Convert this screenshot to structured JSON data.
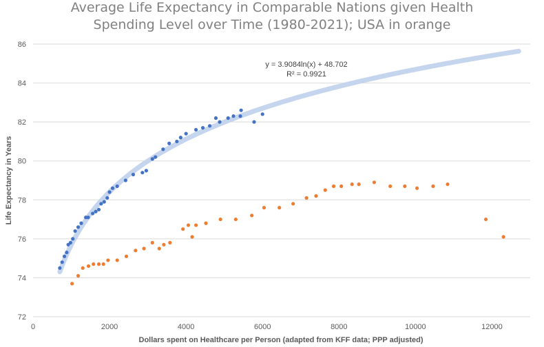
{
  "chart_data": {
    "type": "scatter",
    "title_line1": "Average Life Expectancy in Comparable Nations given Health",
    "title_line2": "Spending Level over Time (1980-2021); USA in orange",
    "xlabel": "Dollars spent on Healthcare per Person (adapted from KFF data; PPP adjusted)",
    "ylabel": "Life Expectancy in Years",
    "xlim": [
      0,
      13000
    ],
    "ylim": [
      72,
      86
    ],
    "x_ticks": [
      0,
      2000,
      4000,
      6000,
      8000,
      10000,
      12000
    ],
    "y_ticks": [
      72,
      74,
      76,
      78,
      80,
      82,
      84,
      86
    ],
    "grid": "horizontal",
    "trendline": {
      "equation": "y = 3.9084ln(x) + 48.702",
      "r_squared": "R² = 0.9921",
      "a": 3.9084,
      "b": 48.702,
      "x_range": [
        700,
        12700
      ],
      "color": "#c5d5ee"
    },
    "series": [
      {
        "color": "#4472c4",
        "points": [
          [
            700,
            74.5
          ],
          [
            760,
            74.8
          ],
          [
            820,
            75.1
          ],
          [
            880,
            75.3
          ],
          [
            920,
            75.7
          ],
          [
            980,
            75.8
          ],
          [
            1040,
            76.0
          ],
          [
            1100,
            76.4
          ],
          [
            1180,
            76.6
          ],
          [
            1260,
            76.8
          ],
          [
            1380,
            77.1
          ],
          [
            1440,
            77.1
          ],
          [
            1560,
            77.3
          ],
          [
            1640,
            77.4
          ],
          [
            1720,
            77.5
          ],
          [
            1780,
            77.8
          ],
          [
            1860,
            77.9
          ],
          [
            1940,
            78.1
          ],
          [
            2000,
            78.4
          ],
          [
            2080,
            78.6
          ],
          [
            2200,
            78.7
          ],
          [
            2420,
            79.0
          ],
          [
            2620,
            79.3
          ],
          [
            2860,
            79.4
          ],
          [
            2960,
            79.5
          ],
          [
            3120,
            80.1
          ],
          [
            3200,
            80.2
          ],
          [
            3400,
            80.6
          ],
          [
            3560,
            80.9
          ],
          [
            3760,
            81.0
          ],
          [
            3860,
            81.2
          ],
          [
            4000,
            81.4
          ],
          [
            4260,
            81.6
          ],
          [
            4440,
            81.7
          ],
          [
            4620,
            81.8
          ],
          [
            4780,
            82.2
          ],
          [
            4880,
            82.0
          ],
          [
            5100,
            82.2
          ],
          [
            5240,
            82.3
          ],
          [
            5420,
            82.3
          ],
          [
            5440,
            82.6
          ],
          [
            5780,
            82.0
          ],
          [
            6000,
            82.4
          ]
        ]
      },
      {
        "color": "#ed7d31",
        "points": [
          [
            1020,
            73.7
          ],
          [
            1180,
            74.1
          ],
          [
            1300,
            74.5
          ],
          [
            1450,
            74.6
          ],
          [
            1580,
            74.7
          ],
          [
            1720,
            74.7
          ],
          [
            1840,
            74.7
          ],
          [
            1960,
            74.9
          ],
          [
            2200,
            74.9
          ],
          [
            2440,
            75.1
          ],
          [
            2680,
            75.4
          ],
          [
            2900,
            75.5
          ],
          [
            3120,
            75.8
          ],
          [
            3300,
            75.5
          ],
          [
            3420,
            75.7
          ],
          [
            3580,
            75.8
          ],
          [
            3920,
            76.5
          ],
          [
            4060,
            76.7
          ],
          [
            4160,
            76.1
          ],
          [
            4260,
            76.7
          ],
          [
            4520,
            76.8
          ],
          [
            4900,
            77.0
          ],
          [
            5300,
            77.0
          ],
          [
            5720,
            77.2
          ],
          [
            6040,
            77.6
          ],
          [
            6440,
            77.6
          ],
          [
            6800,
            77.8
          ],
          [
            7150,
            78.1
          ],
          [
            7400,
            78.2
          ],
          [
            7640,
            78.5
          ],
          [
            7860,
            78.7
          ],
          [
            8060,
            78.7
          ],
          [
            8340,
            78.8
          ],
          [
            8520,
            78.8
          ],
          [
            8920,
            78.9
          ],
          [
            9340,
            78.7
          ],
          [
            9720,
            78.7
          ],
          [
            10040,
            78.6
          ],
          [
            10460,
            78.7
          ],
          [
            10840,
            78.8
          ],
          [
            11840,
            77.0
          ],
          [
            12300,
            76.1
          ]
        ]
      }
    ]
  }
}
